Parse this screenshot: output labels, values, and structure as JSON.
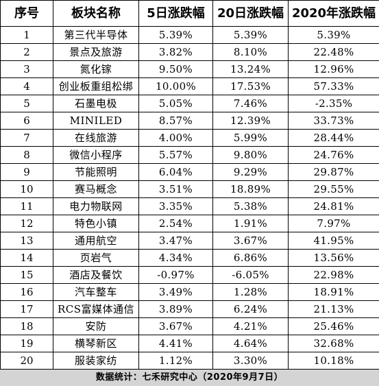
{
  "table": {
    "headers": [
      "序号",
      "板块名称",
      "5日涨跌幅",
      "20日涨跌幅",
      "2020年涨跌幅"
    ],
    "rows": [
      [
        "1",
        "第三代半导体",
        "5.39%",
        "5.39%",
        "5.39%"
      ],
      [
        "2",
        "景点及旅游",
        "3.82%",
        "8.10%",
        "22.48%"
      ],
      [
        "3",
        "氮化镓",
        "9.50%",
        "13.24%",
        "12.96%"
      ],
      [
        "4",
        "创业板重组松绑",
        "10.00%",
        "17.53%",
        "57.33%"
      ],
      [
        "5",
        "石墨电极",
        "5.05%",
        "7.46%",
        "-2.35%"
      ],
      [
        "6",
        "MINILED",
        "8.57%",
        "12.39%",
        "33.73%"
      ],
      [
        "7",
        "在线旅游",
        "4.00%",
        "5.99%",
        "28.44%"
      ],
      [
        "8",
        "微信小程序",
        "5.57%",
        "9.80%",
        "24.76%"
      ],
      [
        "9",
        "节能照明",
        "6.04%",
        "9.29%",
        "29.87%"
      ],
      [
        "10",
        "赛马概念",
        "3.51%",
        "18.89%",
        "29.55%"
      ],
      [
        "11",
        "电力物联网",
        "3.35%",
        "5.38%",
        "24.81%"
      ],
      [
        "12",
        "特色小镇",
        "2.54%",
        "1.91%",
        "7.97%"
      ],
      [
        "13",
        "通用航空",
        "3.47%",
        "3.67%",
        "41.95%"
      ],
      [
        "14",
        "页岩气",
        "4.34%",
        "6.86%",
        "13.56%"
      ],
      [
        "15",
        "酒店及餐饮",
        "-0.97%",
        "-6.05%",
        "22.98%"
      ],
      [
        "16",
        "汽车整车",
        "3.49%",
        "1.28%",
        "18.91%"
      ],
      [
        "17",
        "RCS富媒体通信",
        "3.89%",
        "6.24%",
        "21.13%"
      ],
      [
        "18",
        "安防",
        "3.67%",
        "4.21%",
        "25.46%"
      ],
      [
        "19",
        "横琴新区",
        "4.41%",
        "4.64%",
        "32.68%"
      ],
      [
        "20",
        "服装家纺",
        "1.12%",
        "3.30%",
        "10.18%"
      ]
    ]
  },
  "footnote": "数据统计：七禾研究中心（2020年9月7日）",
  "colors": {
    "background": "#ffffff",
    "grid_line": "#000000",
    "footnote_background": "#d4d4d4",
    "text": "#000000"
  }
}
